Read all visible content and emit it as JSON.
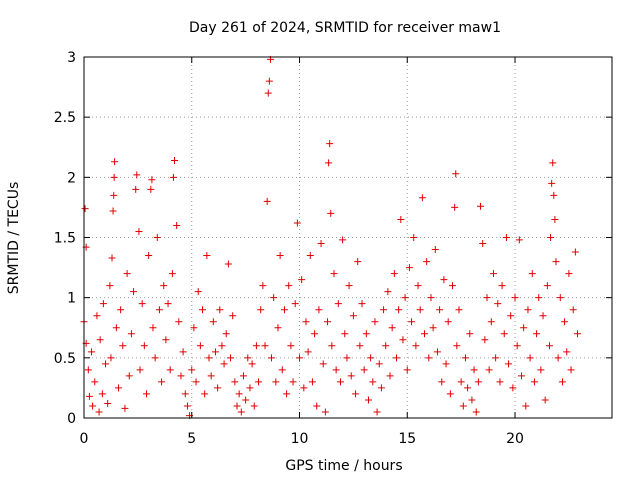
{
  "chart_data": {
    "type": "scatter",
    "title": "Day 261 of 2024, SRMTID for receiver maw1",
    "xlabel": "GPS time / hours",
    "ylabel": "SRMTID / TECUs",
    "xlim": [
      0,
      24.5
    ],
    "ylim": [
      0,
      3
    ],
    "xticks": [
      0,
      5,
      10,
      15,
      20
    ],
    "xtick_labels": [
      "0",
      "5",
      "10",
      "15",
      "20"
    ],
    "yticks": [
      0,
      0.5,
      1,
      1.5,
      2,
      2.5,
      3
    ],
    "ytick_labels": [
      "0",
      "0.5",
      "1",
      "1.5",
      "2",
      "2.5",
      "3"
    ],
    "grid": true,
    "marker": "+",
    "series": [
      {
        "name": "SRMTID",
        "color": "#e00000",
        "points": [
          [
            0.0,
            0.8
          ],
          [
            0.05,
            1.74
          ],
          [
            0.1,
            1.42
          ],
          [
            0.1,
            0.62
          ],
          [
            0.2,
            0.4
          ],
          [
            0.25,
            0.18
          ],
          [
            0.35,
            0.55
          ],
          [
            0.4,
            0.1
          ],
          [
            0.5,
            0.3
          ],
          [
            0.6,
            0.85
          ],
          [
            0.7,
            0.05
          ],
          [
            0.75,
            0.65
          ],
          [
            0.85,
            0.2
          ],
          [
            0.9,
            0.95
          ],
          [
            1.0,
            0.45
          ],
          [
            1.1,
            0.12
          ],
          [
            1.2,
            1.1
          ],
          [
            1.25,
            0.5
          ],
          [
            1.3,
            1.33
          ],
          [
            1.35,
            1.72
          ],
          [
            1.38,
            1.85
          ],
          [
            1.4,
            2.0
          ],
          [
            1.42,
            2.13
          ],
          [
            1.5,
            0.75
          ],
          [
            1.6,
            0.25
          ],
          [
            1.7,
            0.9
          ],
          [
            1.8,
            0.6
          ],
          [
            1.9,
            0.08
          ],
          [
            2.0,
            1.2
          ],
          [
            2.1,
            0.35
          ],
          [
            2.2,
            0.7
          ],
          [
            2.3,
            1.05
          ],
          [
            2.4,
            1.9
          ],
          [
            2.45,
            2.02
          ],
          [
            2.55,
            1.55
          ],
          [
            2.6,
            0.4
          ],
          [
            2.7,
            0.95
          ],
          [
            2.8,
            0.6
          ],
          [
            2.9,
            0.2
          ],
          [
            3.0,
            1.35
          ],
          [
            3.1,
            1.9
          ],
          [
            3.15,
            1.98
          ],
          [
            3.2,
            0.75
          ],
          [
            3.3,
            0.5
          ],
          [
            3.4,
            1.5
          ],
          [
            3.5,
            0.9
          ],
          [
            3.6,
            0.3
          ],
          [
            3.7,
            1.1
          ],
          [
            3.8,
            0.65
          ],
          [
            3.9,
            0.95
          ],
          [
            4.0,
            0.4
          ],
          [
            4.1,
            1.2
          ],
          [
            4.15,
            2.0
          ],
          [
            4.2,
            2.14
          ],
          [
            4.3,
            1.6
          ],
          [
            4.4,
            0.8
          ],
          [
            4.5,
            0.35
          ],
          [
            4.6,
            0.55
          ],
          [
            4.7,
            0.2
          ],
          [
            4.8,
            0.1
          ],
          [
            4.9,
            0.02
          ],
          [
            5.0,
            0.4
          ],
          [
            5.1,
            0.75
          ],
          [
            5.2,
            0.3
          ],
          [
            5.3,
            1.05
          ],
          [
            5.4,
            0.6
          ],
          [
            5.5,
            0.9
          ],
          [
            5.6,
            0.2
          ],
          [
            5.7,
            1.35
          ],
          [
            5.8,
            0.5
          ],
          [
            5.9,
            0.35
          ],
          [
            6.0,
            0.8
          ],
          [
            6.1,
            0.55
          ],
          [
            6.2,
            0.25
          ],
          [
            6.3,
            0.9
          ],
          [
            6.4,
            0.6
          ],
          [
            6.5,
            0.45
          ],
          [
            6.6,
            0.7
          ],
          [
            6.7,
            1.28
          ],
          [
            6.8,
            0.5
          ],
          [
            6.9,
            0.85
          ],
          [
            7.0,
            0.3
          ],
          [
            7.1,
            0.1
          ],
          [
            7.2,
            0.2
          ],
          [
            7.3,
            0.05
          ],
          [
            7.4,
            0.35
          ],
          [
            7.5,
            0.15
          ],
          [
            7.6,
            0.5
          ],
          [
            7.7,
            0.25
          ],
          [
            7.8,
            0.45
          ],
          [
            7.9,
            0.1
          ],
          [
            8.0,
            0.6
          ],
          [
            8.1,
            0.3
          ],
          [
            8.2,
            0.9
          ],
          [
            8.3,
            1.1
          ],
          [
            8.4,
            0.6
          ],
          [
            8.5,
            1.8
          ],
          [
            8.55,
            2.7
          ],
          [
            8.6,
            2.8
          ],
          [
            8.65,
            2.98
          ],
          [
            8.7,
            0.5
          ],
          [
            8.8,
            1.0
          ],
          [
            8.9,
            0.3
          ],
          [
            9.0,
            0.75
          ],
          [
            9.1,
            1.35
          ],
          [
            9.2,
            0.4
          ],
          [
            9.3,
            0.9
          ],
          [
            9.4,
            0.2
          ],
          [
            9.5,
            1.1
          ],
          [
            9.6,
            0.6
          ],
          [
            9.7,
            0.3
          ],
          [
            9.8,
            0.95
          ],
          [
            9.9,
            1.62
          ],
          [
            10.0,
            0.5
          ],
          [
            10.1,
            1.15
          ],
          [
            10.2,
            0.25
          ],
          [
            10.3,
            0.8
          ],
          [
            10.4,
            0.55
          ],
          [
            10.5,
            1.35
          ],
          [
            10.6,
            0.3
          ],
          [
            10.7,
            0.7
          ],
          [
            10.8,
            0.1
          ],
          [
            10.9,
            0.9
          ],
          [
            11.0,
            1.45
          ],
          [
            11.1,
            0.45
          ],
          [
            11.2,
            0.05
          ],
          [
            11.3,
            0.8
          ],
          [
            11.35,
            2.12
          ],
          [
            11.4,
            2.28
          ],
          [
            11.45,
            1.7
          ],
          [
            11.5,
            0.6
          ],
          [
            11.6,
            1.2
          ],
          [
            11.7,
            0.4
          ],
          [
            11.8,
            0.95
          ],
          [
            11.9,
            0.3
          ],
          [
            12.0,
            1.48
          ],
          [
            12.1,
            0.7
          ],
          [
            12.2,
            0.5
          ],
          [
            12.3,
            1.1
          ],
          [
            12.4,
            0.35
          ],
          [
            12.5,
            0.85
          ],
          [
            12.6,
            0.2
          ],
          [
            12.7,
            1.3
          ],
          [
            12.8,
            0.6
          ],
          [
            12.9,
            0.95
          ],
          [
            13.0,
            0.4
          ],
          [
            13.1,
            0.7
          ],
          [
            13.2,
            0.15
          ],
          [
            13.3,
            0.5
          ],
          [
            13.4,
            0.3
          ],
          [
            13.5,
            0.8
          ],
          [
            13.6,
            0.05
          ],
          [
            13.7,
            0.45
          ],
          [
            13.8,
            0.25
          ],
          [
            13.9,
            0.9
          ],
          [
            14.0,
            0.6
          ],
          [
            14.1,
            1.05
          ],
          [
            14.2,
            0.35
          ],
          [
            14.3,
            0.75
          ],
          [
            14.4,
            1.2
          ],
          [
            14.5,
            0.5
          ],
          [
            14.6,
            0.9
          ],
          [
            14.7,
            1.65
          ],
          [
            14.8,
            0.65
          ],
          [
            14.9,
            1.0
          ],
          [
            15.0,
            0.4
          ],
          [
            15.1,
            1.25
          ],
          [
            15.2,
            0.8
          ],
          [
            15.3,
            1.5
          ],
          [
            15.4,
            0.6
          ],
          [
            15.5,
            1.1
          ],
          [
            15.6,
            0.9
          ],
          [
            15.7,
            1.83
          ],
          [
            15.8,
            0.7
          ],
          [
            15.9,
            1.3
          ],
          [
            16.0,
            0.5
          ],
          [
            16.1,
            1.0
          ],
          [
            16.2,
            0.75
          ],
          [
            16.3,
            1.4
          ],
          [
            16.4,
            0.55
          ],
          [
            16.5,
            0.9
          ],
          [
            16.6,
            0.3
          ],
          [
            16.7,
            1.15
          ],
          [
            16.8,
            0.45
          ],
          [
            16.9,
            0.8
          ],
          [
            17.0,
            0.2
          ],
          [
            17.1,
            1.1
          ],
          [
            17.2,
            1.75
          ],
          [
            17.25,
            2.03
          ],
          [
            17.3,
            0.6
          ],
          [
            17.4,
            0.9
          ],
          [
            17.5,
            0.3
          ],
          [
            17.6,
            0.1
          ],
          [
            17.7,
            0.5
          ],
          [
            17.8,
            0.25
          ],
          [
            17.9,
            0.7
          ],
          [
            18.0,
            0.15
          ],
          [
            18.1,
            0.4
          ],
          [
            18.2,
            0.05
          ],
          [
            18.3,
            0.3
          ],
          [
            18.4,
            1.76
          ],
          [
            18.5,
            1.45
          ],
          [
            18.6,
            0.65
          ],
          [
            18.7,
            1.0
          ],
          [
            18.8,
            0.4
          ],
          [
            18.9,
            0.8
          ],
          [
            19.0,
            1.2
          ],
          [
            19.1,
            0.5
          ],
          [
            19.2,
            0.95
          ],
          [
            19.3,
            0.3
          ],
          [
            19.4,
            1.1
          ],
          [
            19.5,
            0.7
          ],
          [
            19.6,
            1.5
          ],
          [
            19.7,
            0.45
          ],
          [
            19.8,
            0.85
          ],
          [
            19.9,
            0.25
          ],
          [
            20.0,
            1.0
          ],
          [
            20.1,
            0.6
          ],
          [
            20.2,
            1.48
          ],
          [
            20.3,
            0.35
          ],
          [
            20.4,
            0.75
          ],
          [
            20.5,
            0.1
          ],
          [
            20.6,
            0.9
          ],
          [
            20.7,
            0.5
          ],
          [
            20.8,
            1.2
          ],
          [
            20.9,
            0.3
          ],
          [
            21.0,
            0.7
          ],
          [
            21.1,
            1.0
          ],
          [
            21.2,
            0.4
          ],
          [
            21.3,
            0.85
          ],
          [
            21.4,
            0.15
          ],
          [
            21.5,
            1.1
          ],
          [
            21.6,
            0.6
          ],
          [
            21.65,
            1.5
          ],
          [
            21.7,
            1.95
          ],
          [
            21.75,
            2.12
          ],
          [
            21.8,
            1.85
          ],
          [
            21.85,
            1.65
          ],
          [
            21.9,
            1.3
          ],
          [
            22.0,
            0.5
          ],
          [
            22.1,
            1.0
          ],
          [
            22.2,
            0.3
          ],
          [
            22.3,
            0.8
          ],
          [
            22.4,
            0.55
          ],
          [
            22.5,
            1.2
          ],
          [
            22.6,
            0.4
          ],
          [
            22.7,
            0.9
          ],
          [
            22.8,
            1.38
          ],
          [
            22.9,
            0.7
          ]
        ]
      }
    ]
  }
}
